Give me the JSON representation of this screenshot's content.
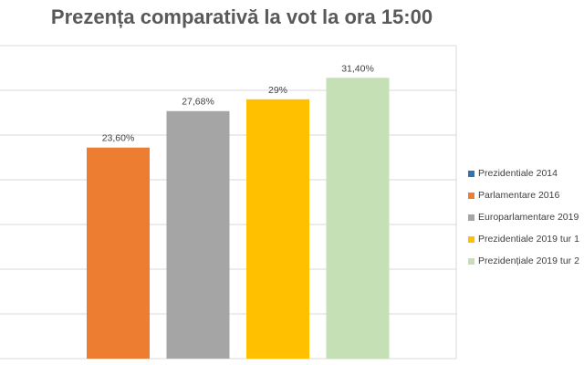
{
  "chart_data": {
    "type": "bar",
    "title": "Prezența comparativă la vot la ora 15:00",
    "categories": [
      "Prezidentiale 2014",
      "Parlamentare 2016",
      "Europarlamentare 2019",
      "Prezidentiale 2019 tur 1",
      "Prezidențiale 2019 tur 2"
    ],
    "values": [
      null,
      23.6,
      27.68,
      29,
      31.4
    ],
    "data_labels": [
      "",
      "23,60%",
      "27,68%",
      "29%",
      "31,40%"
    ],
    "colors": [
      "#2e75b6",
      "#ed7d31",
      "#a5a5a5",
      "#ffc000",
      "#c5e0b4"
    ],
    "ylim": [
      0,
      35
    ],
    "grid": true,
    "legend_position": "right",
    "xlabel": "",
    "ylabel": ""
  }
}
